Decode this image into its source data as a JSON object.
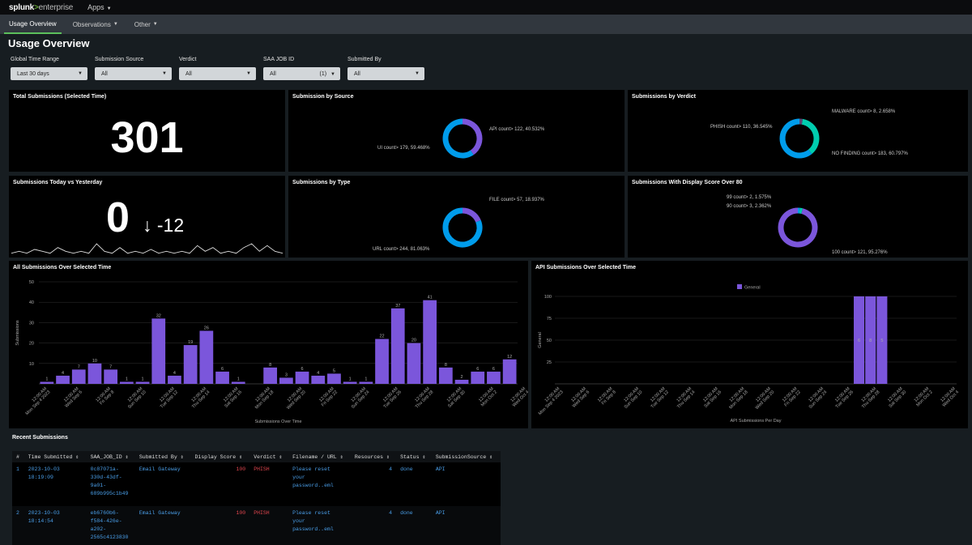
{
  "topbar": {
    "logo_main": "splunk",
    "logo_gt": ">",
    "logo_sub": "enterprise",
    "apps_label": "Apps"
  },
  "nav": {
    "tabs": [
      {
        "label": "Usage Overview"
      },
      {
        "label": "Observations"
      },
      {
        "label": "Other"
      }
    ]
  },
  "page_title": "Usage Overview",
  "filters": [
    {
      "label": "Global Time Range",
      "value": "Last 30 days",
      "extra": ""
    },
    {
      "label": "Submission Source",
      "value": "All",
      "extra": ""
    },
    {
      "label": "Verdict",
      "value": "All",
      "extra": ""
    },
    {
      "label": "SAA JOB ID",
      "value": "All",
      "extra": "(1)"
    },
    {
      "label": "Submitted By",
      "value": "All",
      "extra": ""
    }
  ],
  "panels": {
    "total": {
      "title": "Total Submissions (Selected Time)",
      "value": "301"
    },
    "today": {
      "title": "Submissions Today vs Yesterday",
      "value": "0",
      "delta": "↓ -12"
    },
    "source": {
      "title": "Submission by Source",
      "labels": [
        "API count> 122, 40.532%",
        "UI count> 179, 59.468%"
      ]
    },
    "verdict": {
      "title": "Submissions by Verdict",
      "labels": [
        "MALWARE count> 8, 2.658%",
        "PHISH count> 110, 36.545%",
        "NO FINDING count> 183, 60.797%"
      ]
    },
    "type": {
      "title": "Submissions by Type",
      "labels": [
        "FILE count> 57, 18.937%",
        "URL count> 244, 81.063%"
      ]
    },
    "score": {
      "title": "Submissions With Display Score Over 80",
      "labels": [
        "99 count> 2, 1.575%",
        "90 count> 3, 2.362%",
        "100 count> 121, 95.276%"
      ]
    },
    "all_sub": {
      "title": "All Submissions Over Selected Time"
    },
    "api_sub": {
      "title": "API Submissions Over Selected Time"
    }
  },
  "chart_data": [
    {
      "type": "pie",
      "title": "Submission by Source",
      "labels": [
        "API",
        "UI"
      ],
      "values": [
        122,
        179
      ],
      "percent": [
        40.532,
        59.468
      ],
      "colors": [
        "#7b56db",
        "#009ceb"
      ]
    },
    {
      "type": "pie",
      "title": "Submissions by Verdict",
      "labels": [
        "MALWARE",
        "PHISH",
        "NO FINDING"
      ],
      "values": [
        8,
        110,
        183
      ],
      "percent": [
        2.658,
        36.545,
        60.797
      ],
      "colors": [
        "#5a4575",
        "#00cdaf",
        "#009ceb"
      ]
    },
    {
      "type": "pie",
      "title": "Submissions by Type",
      "labels": [
        "FILE",
        "URL"
      ],
      "values": [
        57,
        244
      ],
      "percent": [
        18.937,
        81.063
      ],
      "colors": [
        "#7b56db",
        "#009ceb"
      ]
    },
    {
      "type": "pie",
      "title": "Submissions With Display Score Over 80",
      "labels": [
        "99",
        "90",
        "100"
      ],
      "values": [
        2,
        3,
        121
      ],
      "percent": [
        1.575,
        2.362,
        95.276
      ],
      "colors": [
        "#009ceb",
        "#00cdaf",
        "#7b56db"
      ]
    },
    {
      "type": "line",
      "title": "Submissions Today vs Yesterday",
      "values": [
        1,
        2,
        1,
        3,
        2,
        1,
        4,
        2,
        1,
        2,
        1,
        6,
        2,
        1,
        4,
        1,
        2,
        1,
        3,
        1,
        2,
        1,
        2,
        1,
        5,
        2,
        4,
        1,
        2,
        1,
        4,
        6,
        2,
        5,
        2,
        1
      ]
    },
    {
      "type": "bar",
      "title": "All Submissions Over Selected Time",
      "xlabel": "Submissions Over Time",
      "ylabel": "Submissions",
      "ylim": [
        0,
        50
      ],
      "yticks": [
        10,
        20,
        30,
        40,
        50
      ],
      "tick_labels": [
        "12:00 AM Mon Sep 4 2023",
        "12:00 AM Wed Sep 6",
        "12:00 AM Fri Sep 8",
        "12:00 AM Sun Sep 10",
        "12:00 AM Tue Sep 12",
        "12:00 AM Thu Sep 14",
        "12:00 AM Sat Sep 16",
        "12:00 AM Mon Sep 18",
        "12:00 AM Wed Sep 20",
        "12:00 AM Fri Sep 22",
        "12:00 AM Sun Sep 24",
        "12:00 AM Tue Sep 26",
        "12:00 AM Thu Sep 28",
        "12:00 AM Sat Sep 30",
        "12:00 AM Mon Oct 2",
        "12:00 AM Wed Oct 4"
      ],
      "values": [
        1,
        4,
        7,
        10,
        7,
        1,
        1,
        32,
        4,
        19,
        26,
        6,
        1,
        0,
        8,
        3,
        6,
        4,
        5,
        1,
        1,
        22,
        37,
        20,
        41,
        8,
        2,
        6,
        6,
        12
      ],
      "color": "#7b56db"
    },
    {
      "type": "bar",
      "title": "API Submissions Over Selected Time",
      "xlabel": "API Submissions Per Day",
      "ylabel": "General",
      "legend": "top",
      "yticks": [
        25,
        50,
        75,
        100
      ],
      "tick_labels": [
        "12:00 AM Mon Sep 4 2023",
        "12:00 AM Wed Sep 6",
        "12:00 AM Fri Sep 8",
        "12:00 AM Sun Sep 10",
        "12:00 AM Tue Sep 12",
        "12:00 AM Thu Sep 14",
        "12:00 AM Sat Sep 16",
        "12:00 AM Mon Sep 18",
        "12:00 AM Wed Sep 20",
        "12:00 AM Fri Sep 22",
        "12:00 AM Sun Sep 24",
        "12:00 AM Tue Sep 26",
        "12:00 AM Thu Sep 28",
        "12:00 AM Sat Sep 30",
        "12:00 AM Mon Oct 2",
        "12:00 AM Wed Oct 4"
      ],
      "series": [
        {
          "name": "General",
          "values": [
            0,
            0,
            0,
            0,
            0,
            0,
            0,
            0,
            0,
            0,
            0,
            0,
            0,
            0,
            0,
            0,
            0,
            0,
            0,
            0,
            0,
            0,
            0,
            0,
            0,
            0,
            6,
            8,
            5,
            0,
            0,
            0,
            0,
            0,
            0
          ]
        }
      ],
      "bar_labels": [
        "6",
        "8",
        "5"
      ],
      "color": "#7b56db"
    }
  ],
  "recent": {
    "title": "Recent Submissions",
    "columns": [
      "#",
      "Time Submitted ⇕",
      "SAA_JOB_ID ⇕",
      "Submitted By ⇕",
      "Display Score ⇕",
      "Verdict ⇕",
      "Filename / URL ⇕",
      "Resources ⇕",
      "Status ⇕",
      "SubmissionSource ⇕"
    ],
    "rows": [
      {
        "n": "1",
        "time": "2023-10-03\n18:19:09",
        "job": "0c87071a-\n330d-43df-\n9a01-\n689b995c1b49",
        "by": "Email Gateway",
        "score": "100",
        "verdict": "PHISH",
        "file": "Please reset\nyour\npassword..eml",
        "res": "4",
        "status": "done",
        "source": "API"
      },
      {
        "n": "2",
        "time": "2023-10-03\n18:14:54",
        "job": "eb6760b6-\nf584-426e-\na202-\n2565c4123830",
        "by": "Email Gateway",
        "score": "100",
        "verdict": "PHISH",
        "file": "Please reset\nyour\npassword..eml",
        "res": "4",
        "status": "done",
        "source": "API"
      }
    ]
  }
}
